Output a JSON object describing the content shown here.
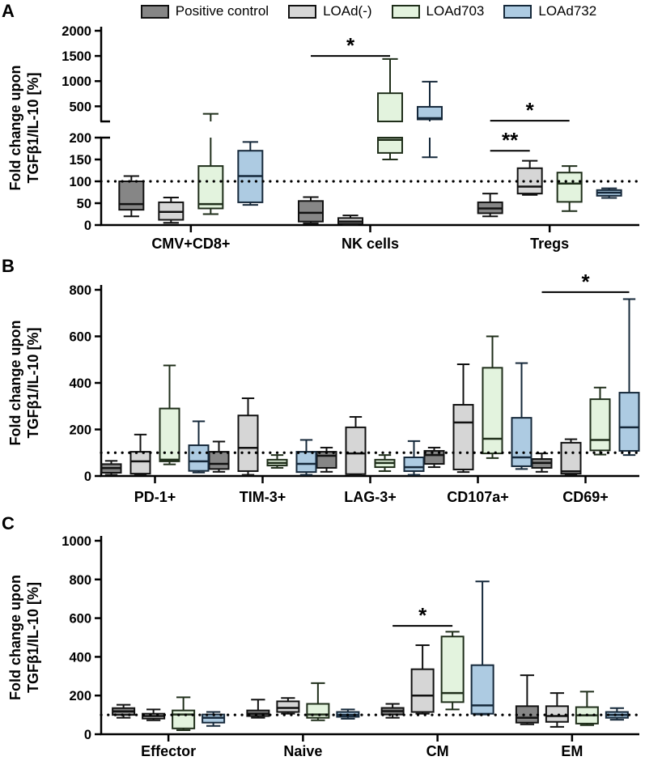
{
  "legend": {
    "items": [
      {
        "label": "Positive control",
        "fill": "#868686",
        "border": "#111111"
      },
      {
        "label": "LOAd(-)",
        "fill": "#d6d6d6",
        "border": "#111111"
      },
      {
        "label": "LOAd703",
        "fill": "#e3f3de",
        "border": "#1f2e1a"
      },
      {
        "label": "LOAd732",
        "fill": "#adcbe2",
        "border": "#15283a"
      }
    ]
  },
  "chart_data": [
    {
      "type": "box",
      "panel_label": "A",
      "ylabel_lines": [
        "Fold change upon",
        "TGFβ1/IL-10 [%]"
      ],
      "box_format": [
        "min",
        "q1",
        "median",
        "q3",
        "max"
      ],
      "ylim": [
        0,
        2000
      ],
      "axis_break": {
        "lower_max": 200
      },
      "yticks": [
        [
          0,
          50,
          100,
          150,
          200
        ],
        [
          500,
          1000,
          1500,
          2000
        ]
      ],
      "reference_line": 100,
      "grid": false,
      "categories": [
        "CMV+CD8+",
        "NK cells",
        "Tregs"
      ],
      "series": [
        {
          "name": "Positive control",
          "values": [
            [
              20,
              35,
              48,
              100,
              112
            ],
            [
              4,
              8,
              28,
              55,
              64
            ],
            [
              20,
              27,
              38,
              52,
              72
            ]
          ]
        },
        {
          "name": "LOAd(-)",
          "values": [
            [
              5,
              12,
              30,
              52,
              63
            ],
            [
              1,
              3,
              8,
              16,
              22
            ],
            [
              69,
              72,
              88,
              130,
              147
            ]
          ]
        },
        {
          "name": "LOAd703",
          "values": [
            [
              25,
              38,
              48,
              135,
              350
            ],
            [
              150,
              165,
              195,
              760,
              1440
            ],
            [
              32,
              53,
              95,
              120,
              135
            ]
          ]
        },
        {
          "name": "LOAd732",
          "values": [
            [
              46,
              52,
              112,
              170,
              190
            ],
            [
              155,
              240,
              265,
              490,
              990
            ],
            [
              62,
              67,
              74,
              80,
              84
            ]
          ]
        }
      ],
      "significance": [
        {
          "category_index": 1,
          "from_series": 0,
          "to_series": 2,
          "label": "*",
          "y_value": 1500
        },
        {
          "category_index": 2,
          "from_series": 0,
          "to_series": 2,
          "label": "*",
          "y_value": 215
        },
        {
          "category_index": 2,
          "from_series": 0,
          "to_series": 1,
          "label": "**",
          "y_value": 170
        }
      ]
    },
    {
      "type": "box",
      "panel_label": "B",
      "ylabel_lines": [
        "Fold change upon",
        "TGFβ1/IL-10 [%]"
      ],
      "box_format": [
        "min",
        "q1",
        "median",
        "q3",
        "max"
      ],
      "ylim": [
        0,
        800
      ],
      "axis_break": null,
      "yticks": [
        [
          0,
          200,
          400,
          600,
          800
        ]
      ],
      "reference_line": 100,
      "grid": false,
      "categories": [
        "PD-1+",
        "TIM-3+",
        "LAG-3+",
        "CD107a+",
        "CD69+"
      ],
      "series": [
        {
          "name": "Positive control",
          "values": [
            [
              5,
              14,
              34,
              51,
              65
            ],
            [
              18,
              30,
              52,
              104,
              148
            ],
            [
              18,
              35,
              87,
              104,
              122
            ],
            [
              38,
              52,
              90,
              108,
              122
            ],
            [
              18,
              35,
              56,
              73,
              97
            ]
          ]
        },
        {
          "name": "LOAd(-)",
          "values": [
            [
              5,
              10,
              63,
              104,
              178
            ],
            [
              5,
              21,
              121,
              260,
              334
            ],
            [
              3,
              8,
              97,
              209,
              254
            ],
            [
              17,
              28,
              230,
              306,
              480
            ],
            [
              5,
              10,
              20,
              143,
              158
            ]
          ]
        },
        {
          "name": "LOAd703",
          "values": [
            [
              50,
              63,
              70,
              290,
              475
            ],
            [
              35,
              45,
              56,
              70,
              90
            ],
            [
              21,
              38,
              56,
              70,
              90
            ],
            [
              77,
              97,
              160,
              465,
              600
            ],
            [
              92,
              110,
              155,
              330,
              380
            ]
          ]
        },
        {
          "name": "LOAd732",
          "values": [
            [
              15,
              22,
              63,
              132,
              235
            ],
            [
              5,
              17,
              52,
              104,
              155
            ],
            [
              5,
              21,
              38,
              80,
              150
            ],
            [
              30,
              42,
              80,
              250,
              485
            ],
            [
              90,
              108,
              209,
              358,
              760
            ]
          ]
        }
      ],
      "significance": [
        {
          "category_index": 4,
          "from_series": 0,
          "to_series": 3,
          "label": "*",
          "y_value": 790
        }
      ]
    },
    {
      "type": "box",
      "panel_label": "C",
      "ylabel_lines": [
        "Fold change upon",
        "TGFβ1/IL-10 [%]"
      ],
      "box_format": [
        "min",
        "q1",
        "median",
        "q3",
        "max"
      ],
      "ylim": [
        0,
        1000
      ],
      "axis_break": null,
      "yticks": [
        [
          0,
          200,
          400,
          600,
          800,
          1000
        ]
      ],
      "reference_line": 100,
      "grid": false,
      "categories": [
        "Effector",
        "Naive",
        "CM",
        "EM"
      ],
      "series": [
        {
          "name": "Positive control",
          "values": [
            [
              85,
              100,
              118,
              135,
              152
            ],
            [
              85,
              94,
              106,
              123,
              179
            ],
            [
              85,
              102,
              119,
              136,
              157
            ],
            [
              51,
              60,
              85,
              145,
              305
            ]
          ]
        },
        {
          "name": "LOAd(-)",
          "values": [
            [
              72,
              81,
              94,
              106,
              128
            ],
            [
              106,
              115,
              136,
              170,
              187
            ],
            [
              106,
              115,
              200,
              336,
              460
            ],
            [
              38,
              64,
              94,
              145,
              213
            ]
          ]
        },
        {
          "name": "LOAd703",
          "values": [
            [
              21,
              30,
              102,
              123,
              191
            ],
            [
              72,
              85,
              102,
              157,
              264
            ],
            [
              128,
              166,
              213,
              505,
              530
            ],
            [
              47,
              55,
              98,
              140,
              220
            ]
          ]
        },
        {
          "name": "LOAd732",
          "values": [
            [
              43,
              60,
              85,
              102,
              115
            ],
            [
              80,
              90,
              100,
              115,
              128
            ],
            [
              102,
              106,
              149,
              357,
              790
            ],
            [
              75,
              85,
              100,
              115,
              135
            ]
          ]
        }
      ],
      "significance": [
        {
          "category_index": 2,
          "from_series": 0,
          "to_series": 2,
          "label": "*",
          "y_value": 560
        }
      ]
    }
  ]
}
